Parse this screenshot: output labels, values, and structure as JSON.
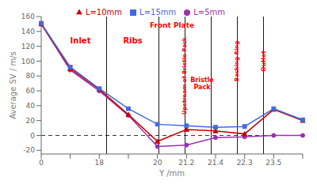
{
  "chart_data": {
    "type": "line",
    "xlabel": "Y /mm",
    "ylabel": "Average SV / m/s",
    "categories": [
      "0",
      null,
      "18",
      null,
      "20",
      "21.2",
      "21.4",
      "22.3",
      "23.5",
      null
    ],
    "series": [
      {
        "name": "L=5mm",
        "color": "#9B30B0",
        "marker": "circle",
        "values": [
          150,
          88,
          60,
          27,
          -15,
          -13,
          -3,
          -2,
          0,
          0
        ]
      },
      {
        "name": "L=10mm",
        "color": "#CC0000",
        "marker": "triangle",
        "values": [
          150,
          90,
          62,
          28,
          -8,
          8,
          6,
          2,
          35,
          20
        ]
      },
      {
        "name": "L=15mm",
        "color": "#4169E1",
        "marker": "square",
        "values": [
          151,
          92,
          63,
          36,
          15,
          13,
          11,
          12,
          36,
          21
        ]
      }
    ],
    "ylim": [
      -25,
      160
    ],
    "yticks": [
      -20,
      0,
      20,
      40,
      60,
      80,
      100,
      120,
      140,
      160
    ],
    "grid": false,
    "legend": "top",
    "vlines": [
      "18",
      "20",
      "21.2",
      "21.4",
      "22.3",
      "23.5"
    ],
    "hlines": [
      0
    ],
    "annotations": [
      {
        "text": "Inlet",
        "color": "red"
      },
      {
        "text": "Ribs",
        "color": "red"
      },
      {
        "text": "Front Plate",
        "color": "red"
      },
      {
        "text": "Upstream of Bristle Pack",
        "color": "red"
      },
      {
        "text": "Bristle\nPack",
        "color": "red"
      },
      {
        "text": "Backing Ring",
        "color": "red"
      },
      {
        "text": "Outlet",
        "color": "red"
      }
    ]
  }
}
